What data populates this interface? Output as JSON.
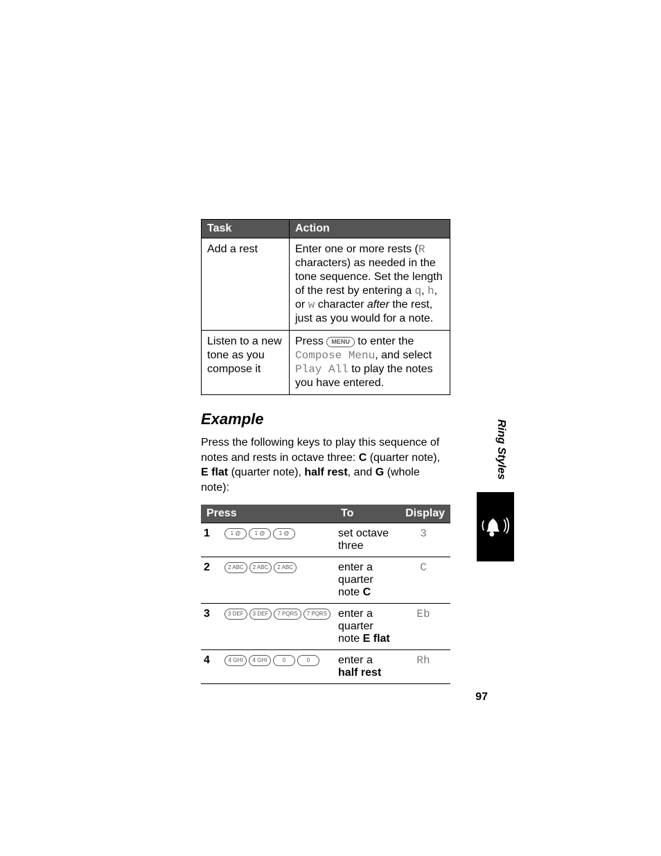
{
  "tasks": {
    "headers": {
      "task": "Task",
      "action": "Action"
    },
    "rows": [
      {
        "task": "Add a rest",
        "action_pre": "Enter one or more rests (",
        "action_code1": "R",
        "action_mid1": " characters) as needed in the tone sequence. Set the length of the rest by entering a ",
        "action_code2": "q",
        "action_mid2": ", ",
        "action_code3": "h",
        "action_mid3": ", or ",
        "action_code4": "w",
        "action_mid4": " character ",
        "action_ital": "after",
        "action_post": " the rest, just as you would for a note."
      },
      {
        "task": "Listen to a new tone as you compose it",
        "b_pre": "Press ",
        "b_menu": "MENU",
        "b_mid1": " to enter the ",
        "b_code1": "Compose Menu",
        "b_mid2": ", and select ",
        "b_code2": "Play All",
        "b_post": " to play the notes you have entered."
      }
    ]
  },
  "example_heading": "Example",
  "example_body": {
    "pre": "Press the following keys to play this sequence of notes and rests in octave three: ",
    "b1": "C",
    "t1": " (quarter note), ",
    "b2": "E flat",
    "t2": " (quarter note), ",
    "b3": "half rest",
    "t3": ", and ",
    "b4": "G",
    "t4": " (whole note):"
  },
  "press": {
    "headers": {
      "press": "Press",
      "to": "To",
      "display": "Display"
    },
    "rows": [
      {
        "n": "1",
        "keys": [
          "1 @",
          "1 @",
          "1 @"
        ],
        "to_pre": "set octave three",
        "to_b": "",
        "disp": "3"
      },
      {
        "n": "2",
        "keys": [
          "2 ABC",
          "2 ABC",
          "2 ABC"
        ],
        "to_pre": "enter a quarter note ",
        "to_b": "C",
        "disp": "C"
      },
      {
        "n": "3",
        "keys": [
          "3 DEF",
          "3 DEF",
          "7 PQRS",
          "7 PQRS"
        ],
        "to_pre": "enter a quarter note ",
        "to_b": "E flat",
        "disp": "Eb"
      },
      {
        "n": "4",
        "keys": [
          "4 GHI",
          "4 GHI",
          "0",
          "0"
        ],
        "to_pre": "enter a ",
        "to_b": "half rest",
        "disp": "Rh"
      }
    ]
  },
  "side_label": "Ring Styles",
  "page_number": "97"
}
